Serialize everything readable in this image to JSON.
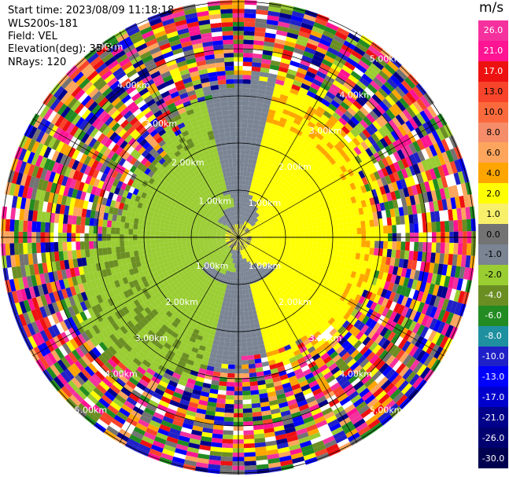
{
  "info": {
    "start_time": "Start time: 2023/08/09 11:18:18",
    "instrument": "WLS200s-181",
    "field": "Field: VEL",
    "elevation": "Elevation(deg): 35.30",
    "nrays": "NRays: 120"
  },
  "range_rings": {
    "labels": [
      "1.00km",
      "2.00km",
      "3.00km",
      "4.00km",
      "5.00km"
    ]
  },
  "colorbar": {
    "unit": "m/s",
    "levels": [
      {
        "label": "26.0",
        "color": "#f5319e"
      },
      {
        "label": "21.0",
        "color": "#ff1493"
      },
      {
        "label": "17.0",
        "color": "#ee1111"
      },
      {
        "label": "13.0",
        "color": "#f8442a"
      },
      {
        "label": "10.0",
        "color": "#fb6a3c"
      },
      {
        "label": "8.0",
        "color": "#f58c6a"
      },
      {
        "label": "6.0",
        "color": "#fda55c"
      },
      {
        "label": "4.0",
        "color": "#ffa500"
      },
      {
        "label": "2.0",
        "color": "#ffff00"
      },
      {
        "label": "1.0",
        "color": "#f8f06a"
      },
      {
        "label": "0.0",
        "color": "#737373"
      },
      {
        "label": "-1.0",
        "color": "#7a8493"
      },
      {
        "label": "-2.0",
        "color": "#9acd32"
      },
      {
        "label": "-4.0",
        "color": "#6b8e23"
      },
      {
        "label": "-6.0",
        "color": "#228b22"
      },
      {
        "label": "-8.0",
        "color": "#1e90a0"
      },
      {
        "label": "-10.0",
        "color": "#2020c8"
      },
      {
        "label": "-13.0",
        "color": "#0000ff"
      },
      {
        "label": "-17.0",
        "color": "#0000cd"
      },
      {
        "label": "-21.0",
        "color": "#00008b"
      },
      {
        "label": "-26.0",
        "color": "#000070"
      },
      {
        "label": "-30.0",
        "color": "#000050"
      }
    ]
  }
}
